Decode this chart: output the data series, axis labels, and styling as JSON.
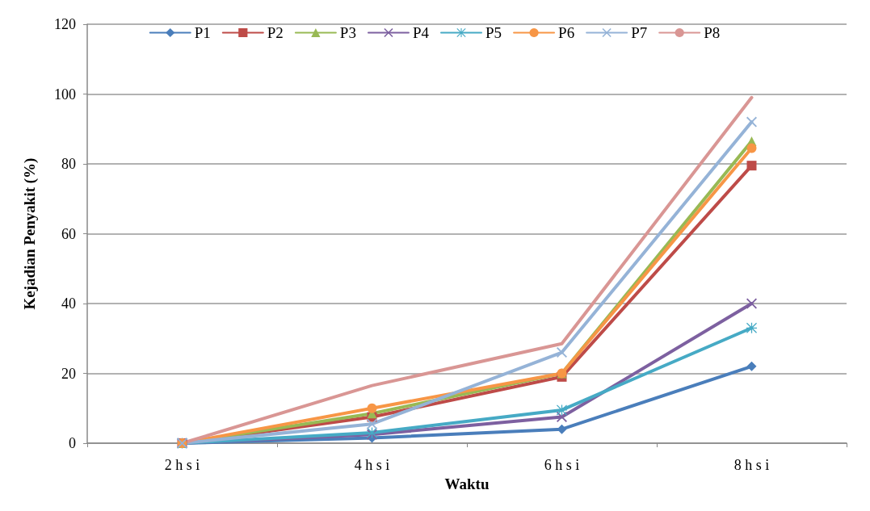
{
  "chart_data": {
    "type": "line",
    "xlabel": "Waktu",
    "ylabel": "Kejadian Penyakit (%)",
    "categories": [
      "2 h s i",
      "4 h s i",
      "6 h s i",
      "8 h s i"
    ],
    "ylim": [
      0,
      120
    ],
    "yticks": [
      0,
      20,
      40,
      60,
      80,
      100,
      120
    ],
    "grid": "y",
    "legend": "top",
    "line_style": "solid",
    "series": [
      {
        "name": "P1",
        "color": "#4a7ebb",
        "marker": "diamond",
        "values": [
          0,
          1.5,
          4,
          22
        ]
      },
      {
        "name": "P2",
        "color": "#be4b48",
        "marker": "square",
        "values": [
          0,
          7.5,
          19,
          79.5
        ]
      },
      {
        "name": "P3",
        "color": "#98b954",
        "marker": "triangle",
        "values": [
          0,
          8.5,
          20,
          86.5
        ]
      },
      {
        "name": "P4",
        "color": "#7d60a0",
        "marker": "cross",
        "values": [
          0,
          2.5,
          7.5,
          40
        ]
      },
      {
        "name": "P5",
        "color": "#46aac5",
        "marker": "star",
        "values": [
          0,
          3,
          9.5,
          33
        ]
      },
      {
        "name": "P6",
        "color": "#f79646",
        "marker": "circle",
        "values": [
          0,
          10,
          20,
          84.5
        ]
      },
      {
        "name": "P7",
        "color": "#95b3d7",
        "marker": "cross",
        "values": [
          0,
          5.5,
          26,
          92
        ]
      },
      {
        "name": "P8",
        "color": "#d99694",
        "marker": "none",
        "values": [
          0,
          16.5,
          28.5,
          99
        ]
      }
    ]
  }
}
